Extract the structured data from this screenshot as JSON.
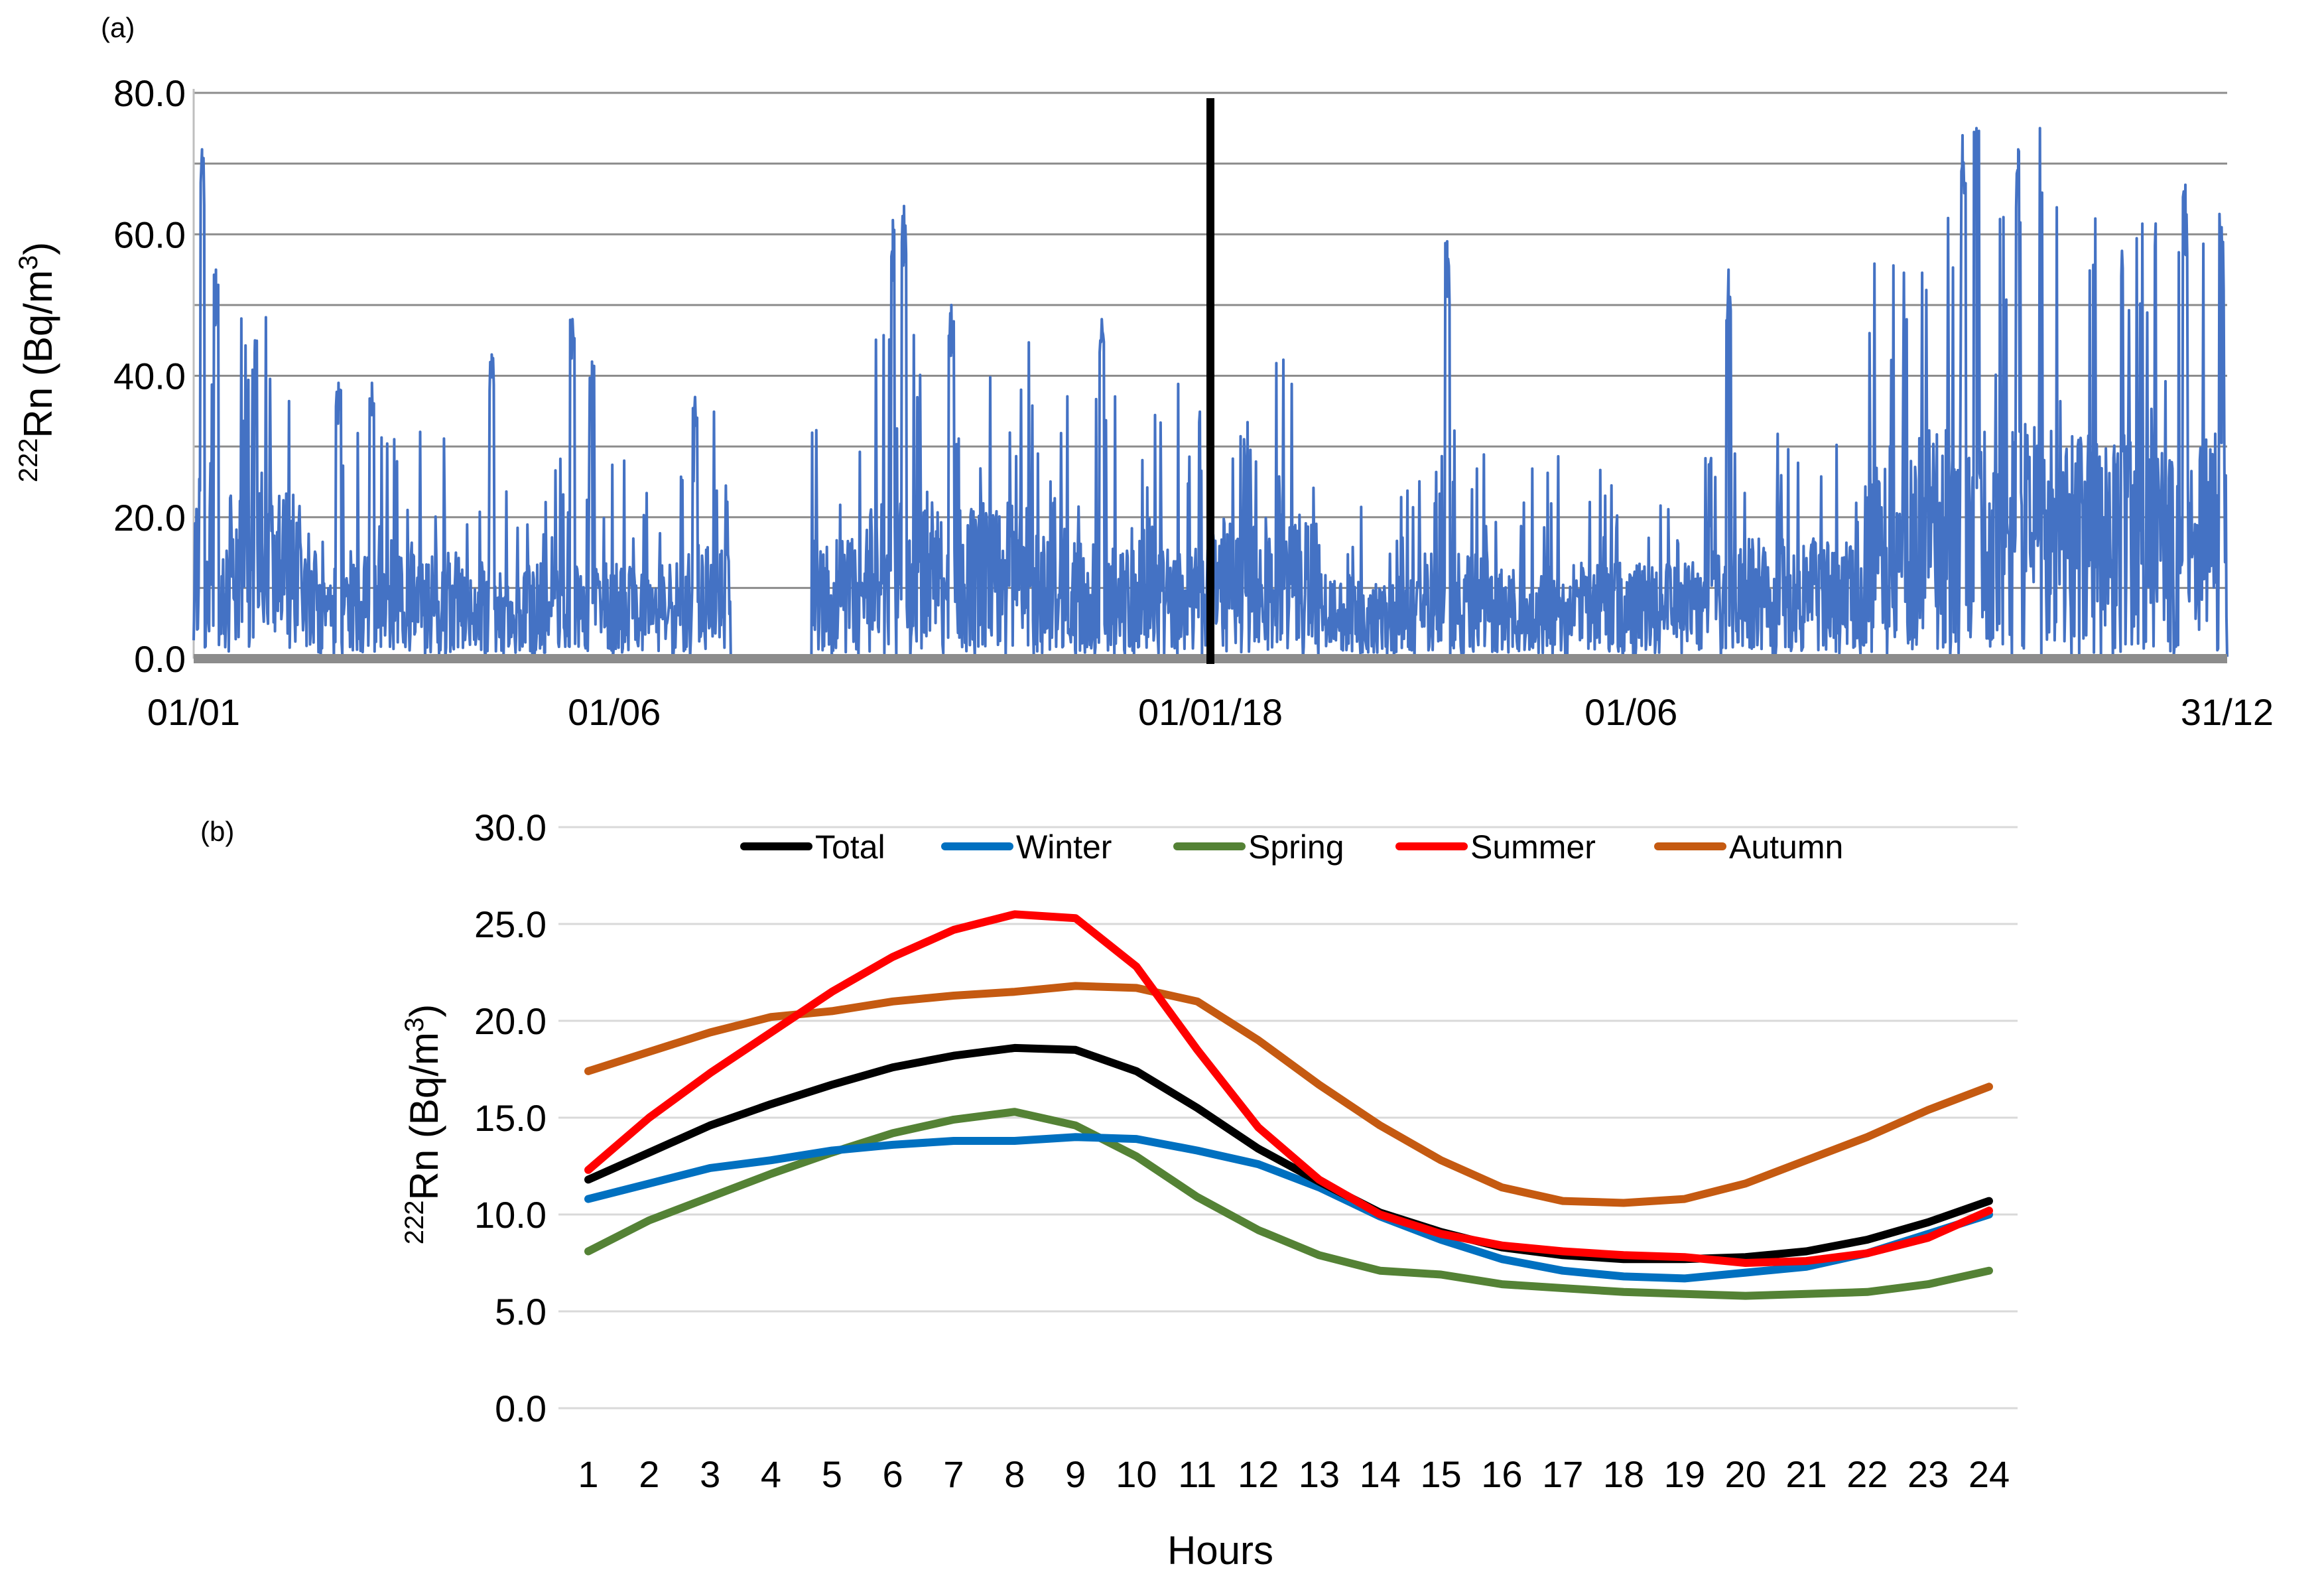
{
  "chart_data": [
    {
      "panel": "(a)",
      "type": "line",
      "ylabel_super": "222",
      "ylabel_main": "Rn (Bq/m",
      "ylabel_sup2": "3",
      "ylabel_close": ")",
      "ylim": [
        0,
        80
      ],
      "yticks": [
        "0.0",
        "20.0",
        "40.0",
        "60.0",
        "80.0"
      ],
      "yticks_values": [
        0,
        20,
        40,
        60,
        80
      ],
      "gridlines_values": [
        0,
        10,
        20,
        30,
        40,
        50,
        60,
        70,
        80
      ],
      "xlim_days": [
        0,
        730
      ],
      "xticks": [
        {
          "label": "01/01",
          "day": 0
        },
        {
          "label": "01/06",
          "day": 151
        },
        {
          "label": "01/01/18",
          "day": 365
        },
        {
          "label": "01/06",
          "day": 516
        },
        {
          "label": "31/12",
          "day": 730
        }
      ],
      "year_divider_day": 365,
      "data_gap_days": [
        193,
        222
      ],
      "series_color": "#4472c4",
      "generator": {
        "seed": 20171,
        "max_value_observed": 75,
        "envelope_peaks": [
          {
            "day": 3,
            "value": 72
          },
          {
            "day": 8,
            "value": 55
          },
          {
            "day": 22,
            "value": 45
          },
          {
            "day": 52,
            "value": 39
          },
          {
            "day": 64,
            "value": 39
          },
          {
            "day": 107,
            "value": 43
          },
          {
            "day": 136,
            "value": 48
          },
          {
            "day": 143,
            "value": 42
          },
          {
            "day": 180,
            "value": 37
          },
          {
            "day": 251,
            "value": 62
          },
          {
            "day": 255,
            "value": 64
          },
          {
            "day": 272,
            "value": 50
          },
          {
            "day": 326,
            "value": 48
          },
          {
            "day": 450,
            "value": 59
          },
          {
            "day": 551,
            "value": 55
          },
          {
            "day": 635,
            "value": 74
          },
          {
            "day": 640,
            "value": 75
          },
          {
            "day": 655,
            "value": 72
          },
          {
            "day": 715,
            "value": 67
          },
          {
            "day": 728,
            "value": 61
          }
        ]
      }
    },
    {
      "panel": "(b)",
      "type": "line",
      "xlabel": "Hours",
      "ylabel_super": "222",
      "ylabel_main": "Rn (Bq/m",
      "ylabel_sup2": "3",
      "ylabel_close": ")",
      "ylim": [
        0,
        30
      ],
      "yticks": [
        "0.0",
        "5.0",
        "10.0",
        "15.0",
        "20.0",
        "25.0",
        "30.0"
      ],
      "yticks_values": [
        0,
        5,
        10,
        15,
        20,
        25,
        30
      ],
      "categories": [
        "1",
        "2",
        "3",
        "4",
        "5",
        "6",
        "7",
        "8",
        "9",
        "10",
        "11",
        "12",
        "13",
        "14",
        "15",
        "16",
        "17",
        "18",
        "19",
        "20",
        "21",
        "22",
        "23",
        "24"
      ],
      "series": [
        {
          "name": "Total",
          "color": "#000000",
          "values": [
            11.8,
            13.2,
            14.6,
            15.7,
            16.7,
            17.6,
            18.2,
            18.6,
            18.5,
            17.4,
            15.5,
            13.4,
            11.7,
            10.1,
            9.1,
            8.3,
            7.9,
            7.7,
            7.7,
            7.8,
            8.1,
            8.7,
            9.6,
            10.7
          ]
        },
        {
          "name": "Winter",
          "color": "#0070c0",
          "values": [
            10.8,
            11.6,
            12.4,
            12.8,
            13.3,
            13.6,
            13.8,
            13.8,
            14.0,
            13.9,
            13.3,
            12.6,
            11.4,
            9.9,
            8.7,
            7.7,
            7.1,
            6.8,
            6.7,
            7.0,
            7.3,
            8.0,
            9.0,
            10.0
          ]
        },
        {
          "name": "Spring",
          "color": "#548235",
          "values": [
            8.1,
            9.7,
            10.9,
            12.1,
            13.2,
            14.2,
            14.9,
            15.3,
            14.6,
            13.0,
            10.9,
            9.2,
            7.9,
            7.1,
            6.9,
            6.4,
            6.2,
            6.0,
            5.9,
            5.8,
            5.9,
            6.0,
            6.4,
            7.1
          ]
        },
        {
          "name": "Summer",
          "color": "#ff0000",
          "values": [
            12.3,
            15.0,
            17.3,
            19.4,
            21.5,
            23.3,
            24.7,
            25.5,
            25.3,
            22.8,
            18.5,
            14.5,
            11.8,
            10.0,
            9.0,
            8.4,
            8.1,
            7.9,
            7.8,
            7.5,
            7.6,
            8.0,
            8.8,
            10.2
          ]
        },
        {
          "name": "Autumn",
          "color": "#c55a11",
          "values": [
            17.4,
            18.4,
            19.4,
            20.2,
            20.5,
            21.0,
            21.3,
            21.5,
            21.8,
            21.7,
            21.0,
            19.0,
            16.7,
            14.6,
            12.8,
            11.4,
            10.7,
            10.6,
            10.8,
            11.6,
            12.8,
            14.0,
            15.4,
            16.6
          ]
        }
      ]
    }
  ]
}
